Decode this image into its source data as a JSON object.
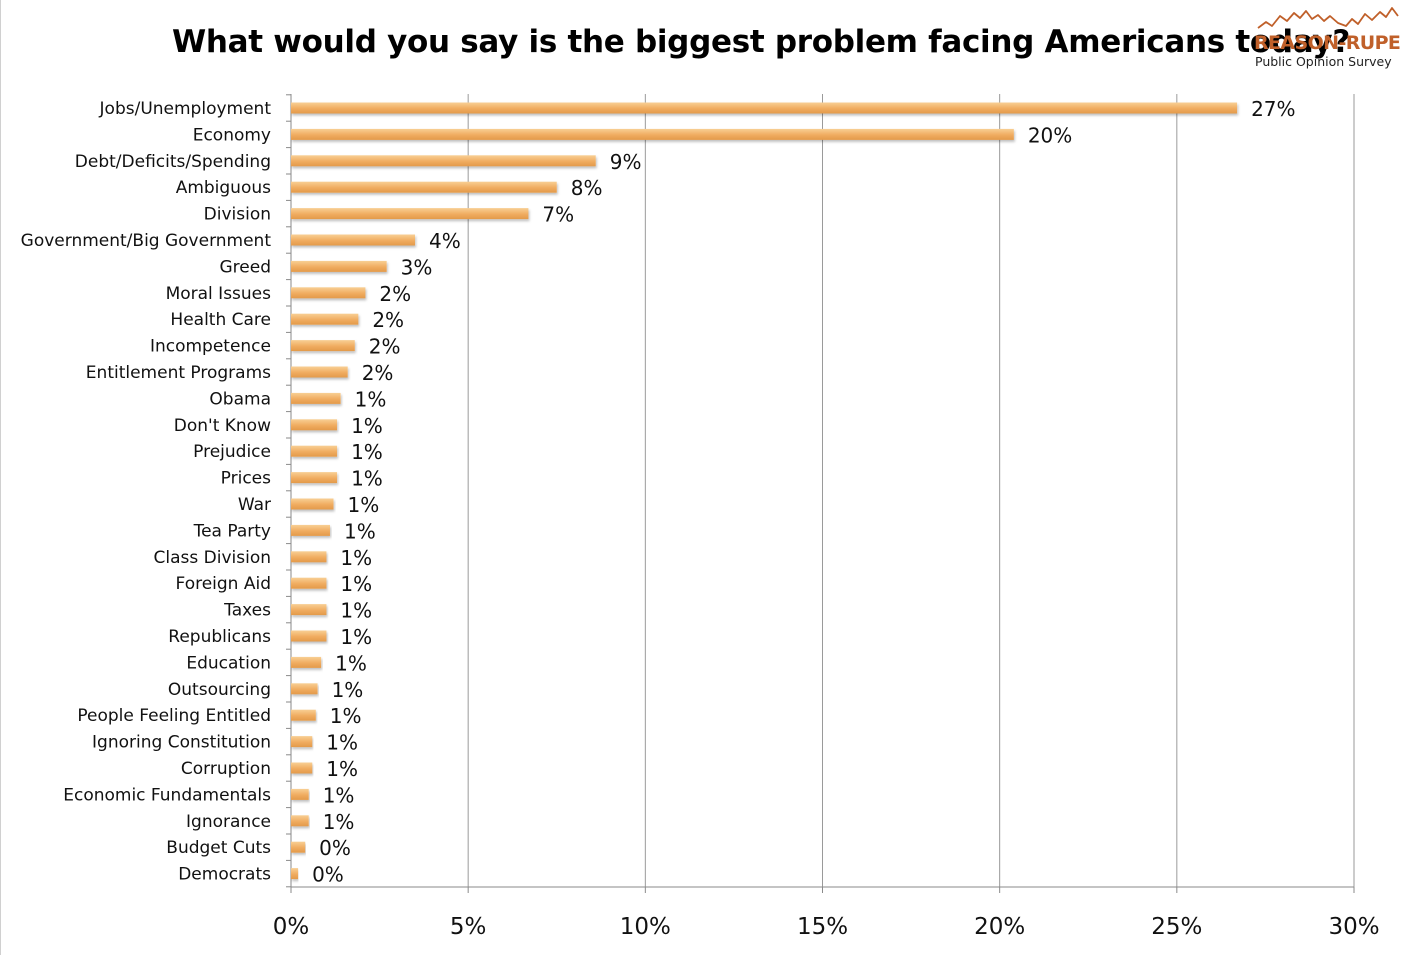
{
  "chart_data": {
    "type": "bar",
    "orientation": "horizontal",
    "title": "What would you say is the biggest problem facing Americans today?",
    "xlim": [
      0,
      30
    ],
    "xticks": [
      0,
      5,
      10,
      15,
      20,
      25,
      30
    ],
    "tick_labels": [
      "0%",
      "5%",
      "10%",
      "15%",
      "20%",
      "25%",
      "30%"
    ],
    "grid": "vertical",
    "bar_color": "#F2B56D",
    "categories": [
      "Jobs/Unemployment",
      "Economy",
      "Debt/Deficits/Spending",
      "Ambiguous",
      "Division",
      "Government/Big Government",
      "Greed",
      "Moral Issues",
      "Health Care",
      "Incompetence",
      "Entitlement Programs",
      "Obama",
      "Don't Know",
      "Prejudice",
      "Prices",
      "War",
      "Tea Party",
      "Class Division",
      "Foreign Aid",
      "Taxes",
      "Republicans",
      "Education",
      "Outsourcing",
      "People Feeling Entitled",
      "Ignoring Constitution",
      "Corruption",
      "Economic Fundamentals",
      "Ignorance",
      "Budget Cuts",
      "Democrats"
    ],
    "values": [
      26.7,
      20.4,
      8.6,
      7.5,
      6.7,
      3.5,
      2.7,
      2.1,
      1.9,
      1.8,
      1.6,
      1.4,
      1.3,
      1.3,
      1.3,
      1.2,
      1.1,
      1.0,
      1.0,
      1.0,
      1.0,
      0.85,
      0.75,
      0.7,
      0.6,
      0.6,
      0.5,
      0.5,
      0.4,
      0.2
    ],
    "data_labels": [
      "27%",
      "20%",
      "9%",
      "8%",
      "7%",
      "4%",
      "3%",
      "2%",
      "2%",
      "2%",
      "2%",
      "1%",
      "1%",
      "1%",
      "1%",
      "1%",
      "1%",
      "1%",
      "1%",
      "1%",
      "1%",
      "1%",
      "1%",
      "1%",
      "1%",
      "1%",
      "1%",
      "1%",
      "0%",
      "0%"
    ]
  },
  "logo": {
    "brand": "REASON-RUPE",
    "tagline": "Public Opinion Survey",
    "color": "#C0602A"
  }
}
